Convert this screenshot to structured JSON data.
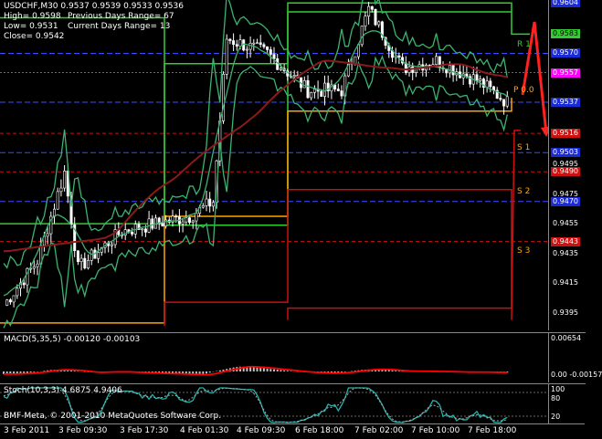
{
  "window": {
    "symbol_line": "USDCHF,M30  0.9537 0.9539 0.9533 0.9536",
    "high": "High= 0.9598",
    "low": "Low= 0.9531",
    "close": "Close= 0.9542",
    "prev_range": "Previous Days Range= 67",
    "cur_range": "Current Days Range= 13"
  },
  "levels": {
    "r1": "R 1",
    "pivot": "P 0.0",
    "s1": "S 1",
    "s2": "S 2",
    "s3": "S 3"
  },
  "price_axis": [
    {
      "label": "0.9604",
      "y": 0.9604,
      "bg": "#1a2bd6",
      "fg": "#fff"
    },
    {
      "label": "0.9583",
      "y": 0.9583,
      "bg": "#33cc33",
      "fg": "#000"
    },
    {
      "label": "0.9570",
      "y": 0.957,
      "bg": "#1a2bd6",
      "fg": "#fff"
    },
    {
      "label": "0.9557",
      "y": 0.9557,
      "bg": "#ff00ff",
      "fg": "#fff"
    },
    {
      "label": "0.9537",
      "y": 0.9537,
      "bg": "#1a2bd6",
      "fg": "#fff"
    },
    {
      "label": "0.9516",
      "y": 0.9516,
      "bg": "#cc1111",
      "fg": "#fff"
    },
    {
      "label": "0.9503",
      "y": 0.9503,
      "bg": "#1a2bd6",
      "fg": "#fff"
    },
    {
      "label": "0.9495",
      "y": 0.9495,
      "bg": "",
      "fg": "#fff"
    },
    {
      "label": "0.9490",
      "y": 0.949,
      "bg": "#cc1111",
      "fg": "#fff"
    },
    {
      "label": "0.9475",
      "y": 0.9475,
      "bg": "",
      "fg": "#fff"
    },
    {
      "label": "0.9470",
      "y": 0.947,
      "bg": "#1a2bd6",
      "fg": "#fff"
    },
    {
      "label": "0.9455",
      "y": 0.9455,
      "bg": "",
      "fg": "#fff"
    },
    {
      "label": "0.9443",
      "y": 0.9443,
      "bg": "#cc1111",
      "fg": "#fff"
    },
    {
      "label": "0.9435",
      "y": 0.9435,
      "bg": "",
      "fg": "#fff"
    },
    {
      "label": "0.9415",
      "y": 0.9415,
      "bg": "",
      "fg": "#fff"
    },
    {
      "label": "0.9395",
      "y": 0.9395,
      "bg": "",
      "fg": "#fff"
    }
  ],
  "macd": {
    "label": "MACD(5,35,5) -0.00120 -0.00103",
    "axis_top": "0.00654",
    "axis_bottom": "0.00 -0.00157"
  },
  "stoch": {
    "label": "Stoch(10,3,3) 4.6875 4.9406",
    "axis_top": "100",
    "axis_mid": "80",
    "axis_low": "20"
  },
  "copyright": "BMF-Meta, © 2001-2010 MetaQuotes Software Corp.",
  "time_axis": [
    "3 Feb 2011",
    "3 Feb 09:30",
    "3 Feb 17:30",
    "4 Feb 01:30",
    "4 Feb 09:30",
    "6 Feb 18:00",
    "7 Feb 02:00",
    "7 Feb 10:00",
    "7 Feb 18:00"
  ],
  "colors": {
    "background": "#000000",
    "candles": "#ffffff",
    "bollinger": "#3cb371",
    "ma": "#8b1a1a",
    "resistance": "#33cc33",
    "pivot": "#ff00ff",
    "support": "#cc1111",
    "range_box": "#ffa500",
    "macd_hist": "#c0c0c0",
    "macd_signal": "#ff0000",
    "stoch_main": "#20b2aa"
  }
}
